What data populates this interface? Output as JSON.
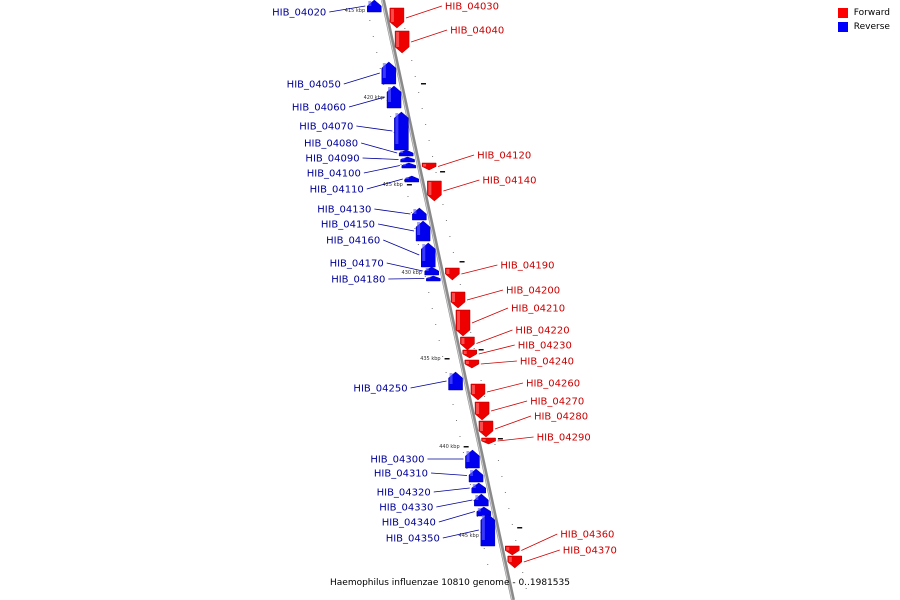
{
  "legend": {
    "items": [
      {
        "label": "Forward",
        "color": "#ff0000"
      },
      {
        "label": "Reverse",
        "color": "#0000ff"
      }
    ]
  },
  "caption": "Haemophilus influenzae 10810 genome - 0..1981535",
  "colors": {
    "forward": "#ee0000",
    "reverse": "#0000ee",
    "forward_text": "#cc0000",
    "reverse_text": "#000099"
  },
  "ticks": [
    "415 kbp",
    "420 kbp",
    "425 kbp",
    "430 kbp",
    "435 kbp",
    "440 kbp",
    "445 kbp"
  ],
  "genes": [
    {
      "id": "HIB_04020",
      "strand": "reverse"
    },
    {
      "id": "HIB_04030",
      "strand": "forward"
    },
    {
      "id": "HIB_04040",
      "strand": "forward"
    },
    {
      "id": "HIB_04050",
      "strand": "reverse"
    },
    {
      "id": "HIB_04060",
      "strand": "reverse"
    },
    {
      "id": "HIB_04070",
      "strand": "reverse"
    },
    {
      "id": "HIB_04080",
      "strand": "reverse"
    },
    {
      "id": "HIB_04090",
      "strand": "reverse"
    },
    {
      "id": "HIB_04100",
      "strand": "reverse"
    },
    {
      "id": "HIB_04110",
      "strand": "reverse"
    },
    {
      "id": "HIB_04120",
      "strand": "forward"
    },
    {
      "id": "HIB_04130",
      "strand": "reverse"
    },
    {
      "id": "HIB_04140",
      "strand": "forward"
    },
    {
      "id": "HIB_04150",
      "strand": "reverse"
    },
    {
      "id": "HIB_04160",
      "strand": "reverse"
    },
    {
      "id": "HIB_04170",
      "strand": "reverse"
    },
    {
      "id": "HIB_04180",
      "strand": "reverse"
    },
    {
      "id": "HIB_04190",
      "strand": "forward"
    },
    {
      "id": "HIB_04200",
      "strand": "forward"
    },
    {
      "id": "HIB_04210",
      "strand": "forward"
    },
    {
      "id": "HIB_04220",
      "strand": "forward"
    },
    {
      "id": "HIB_04230",
      "strand": "forward"
    },
    {
      "id": "HIB_04240",
      "strand": "forward"
    },
    {
      "id": "HIB_04250",
      "strand": "reverse"
    },
    {
      "id": "HIB_04260",
      "strand": "forward"
    },
    {
      "id": "HIB_04270",
      "strand": "forward"
    },
    {
      "id": "HIB_04280",
      "strand": "forward"
    },
    {
      "id": "HIB_04290",
      "strand": "forward"
    },
    {
      "id": "HIB_04300",
      "strand": "reverse"
    },
    {
      "id": "HIB_04310",
      "strand": "reverse"
    },
    {
      "id": "HIB_04320",
      "strand": "reverse"
    },
    {
      "id": "HIB_04330",
      "strand": "reverse"
    },
    {
      "id": "HIB_04340",
      "strand": "reverse"
    },
    {
      "id": "HIB_04350",
      "strand": "reverse"
    },
    {
      "id": "HIB_04360",
      "strand": "forward"
    },
    {
      "id": "HIB_04370",
      "strand": "forward"
    }
  ]
}
